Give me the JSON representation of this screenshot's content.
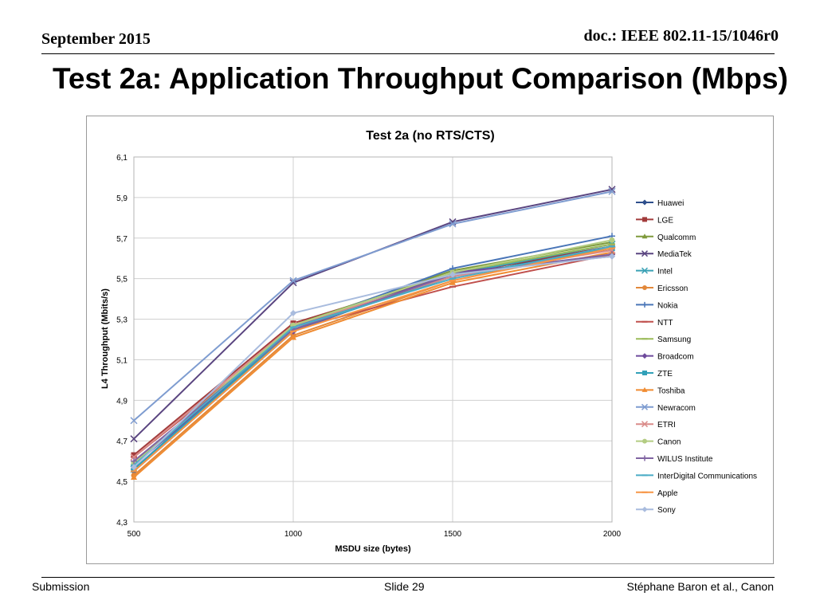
{
  "header": {
    "date": "September 2015",
    "doc": "doc.: IEEE 802.11-15/1046r0"
  },
  "slide": {
    "title": "Test 2a: Application Throughput Comparison (Mbps)"
  },
  "footer": {
    "left": "Submission",
    "center": "Slide 29",
    "right": "Stéphane Baron et al., Canon"
  },
  "chart_data": {
    "type": "line",
    "title": "Test 2a (no RTS/CTS)",
    "xlabel": "MSDU size (bytes)",
    "ylabel": "L4 Throughput (Mbits/s)",
    "x": [
      500,
      1000,
      1500,
      2000
    ],
    "xlim": [
      500,
      2000
    ],
    "ylim": [
      4.3,
      6.1
    ],
    "xticks": [
      "500",
      "1000",
      "1500",
      "2000"
    ],
    "yticks": [
      "4,3",
      "4,5",
      "4,7",
      "4,9",
      "5,1",
      "5,3",
      "5,5",
      "5,7",
      "5,9",
      "6,1"
    ],
    "grid": true,
    "legend_position": "right",
    "series": [
      {
        "name": "Huawei",
        "color": "#2E4F8C",
        "marker": "diamond",
        "values": [
          4.55,
          5.24,
          5.53,
          5.64
        ]
      },
      {
        "name": "LGE",
        "color": "#A23B3B",
        "marker": "square",
        "values": [
          4.63,
          5.28,
          5.52,
          5.66
        ]
      },
      {
        "name": "Qualcomm",
        "color": "#7F9A3C",
        "marker": "triangle",
        "values": [
          4.59,
          5.27,
          5.54,
          5.68
        ]
      },
      {
        "name": "MediaTek",
        "color": "#5A4580",
        "marker": "x",
        "values": [
          4.71,
          5.48,
          5.78,
          5.94
        ]
      },
      {
        "name": "Intel",
        "color": "#3AA1B5",
        "marker": "x",
        "values": [
          4.56,
          5.26,
          5.52,
          5.67
        ]
      },
      {
        "name": "Ericsson",
        "color": "#E2883A",
        "marker": "circle",
        "values": [
          4.53,
          5.22,
          5.49,
          5.66
        ]
      },
      {
        "name": "Nokia",
        "color": "#4A76B8",
        "marker": "plus",
        "values": [
          4.56,
          5.26,
          5.55,
          5.71
        ]
      },
      {
        "name": "NTT",
        "color": "#C0504D",
        "marker": "dash",
        "values": [
          4.62,
          5.25,
          5.46,
          5.62
        ]
      },
      {
        "name": "Samsung",
        "color": "#9BBB59",
        "marker": "dash",
        "values": [
          4.58,
          5.27,
          5.53,
          5.67
        ]
      },
      {
        "name": "Broadcom",
        "color": "#6E4A9C",
        "marker": "diamond",
        "values": [
          4.58,
          5.24,
          5.53,
          5.61
        ]
      },
      {
        "name": "ZTE",
        "color": "#31A0B8",
        "marker": "square",
        "values": [
          4.56,
          5.25,
          5.51,
          5.65
        ]
      },
      {
        "name": "Toshiba",
        "color": "#F08C32",
        "marker": "triangle",
        "values": [
          4.52,
          5.21,
          5.48,
          5.63
        ]
      },
      {
        "name": "Newracom",
        "color": "#7E9CD0",
        "marker": "x",
        "values": [
          4.8,
          5.49,
          5.77,
          5.93
        ]
      },
      {
        "name": "ETRI",
        "color": "#DA8C8A",
        "marker": "x",
        "values": [
          4.62,
          5.27,
          5.51,
          5.64
        ]
      },
      {
        "name": "Canon",
        "color": "#B3CC82",
        "marker": "circle",
        "values": [
          4.59,
          5.27,
          5.53,
          5.69
        ]
      },
      {
        "name": "WILUS Institute",
        "color": "#8064A2",
        "marker": "plus",
        "values": [
          4.6,
          5.25,
          5.52,
          5.62
        ]
      },
      {
        "name": "InterDigital Communications",
        "color": "#4BACC6",
        "marker": "dash",
        "values": [
          4.58,
          5.26,
          5.5,
          5.66
        ]
      },
      {
        "name": "Apple",
        "color": "#F79646",
        "marker": "dash",
        "values": [
          4.55,
          5.24,
          5.49,
          5.65
        ]
      },
      {
        "name": "Sony",
        "color": "#A9BCDE",
        "marker": "diamond",
        "values": [
          4.57,
          5.33,
          5.52,
          5.61
        ]
      }
    ]
  }
}
